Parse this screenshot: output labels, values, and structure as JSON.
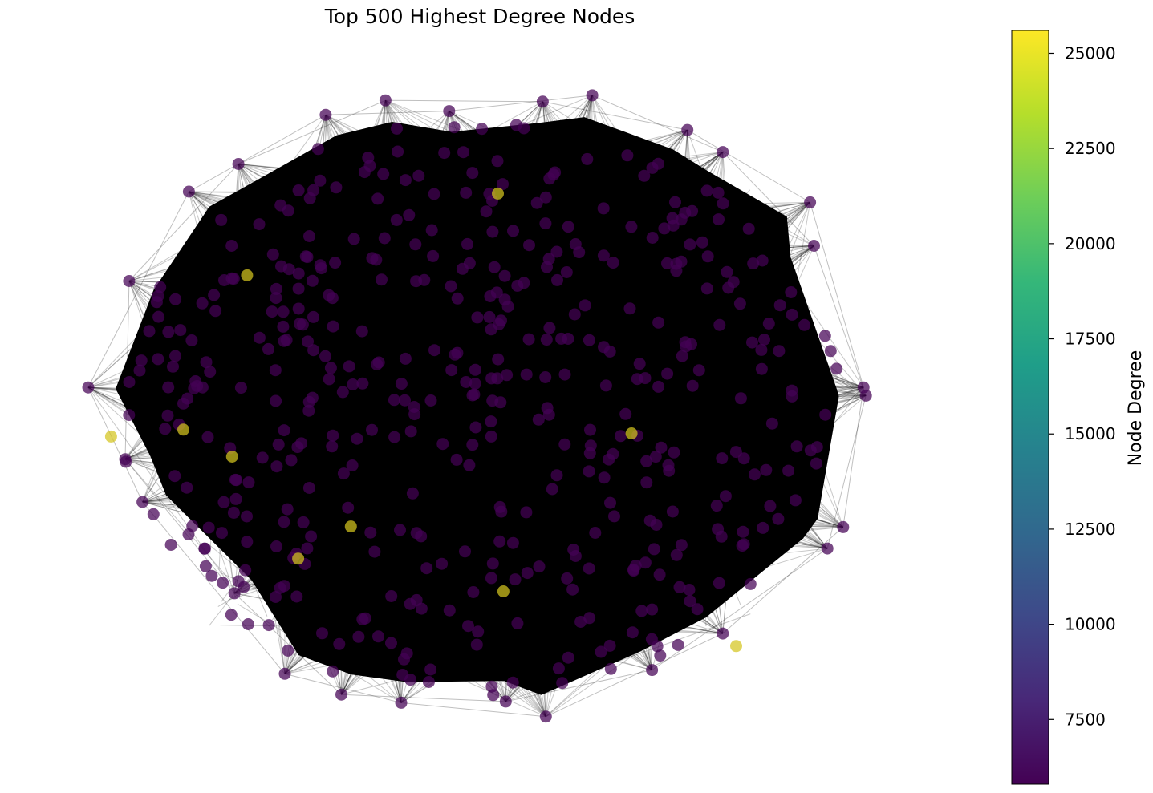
{
  "chart_data": {
    "type": "scatter",
    "title": "Top 500 Highest Degree Nodes",
    "node_count": 500,
    "colorbar": {
      "label": "Node Degree",
      "colormap": "viridis",
      "min": 5800,
      "max": 25600,
      "ticks": [
        7500,
        10000,
        12500,
        15000,
        17500,
        20000,
        22500,
        25000
      ]
    },
    "node_colors": {
      "low": "#440154",
      "high": "#d4c51f"
    },
    "edge_color": "#000000",
    "axes_visible": false,
    "high_degree_nodes": [
      {
        "x": 0.826,
        "y": 0.88,
        "degree": 25000
      },
      {
        "x": 0.53,
        "y": 0.793,
        "degree": 25000
      },
      {
        "x": 0.269,
        "y": 0.741,
        "degree": 25000
      },
      {
        "x": 0.336,
        "y": 0.69,
        "degree": 25000
      },
      {
        "x": 0.185,
        "y": 0.579,
        "degree": 25000
      },
      {
        "x": 0.031,
        "y": 0.547,
        "degree": 25000
      },
      {
        "x": 0.123,
        "y": 0.536,
        "degree": 25000
      },
      {
        "x": 0.693,
        "y": 0.542,
        "degree": 25000
      },
      {
        "x": 0.204,
        "y": 0.291,
        "degree": 25000
      },
      {
        "x": 0.523,
        "y": 0.161,
        "degree": 25000
      }
    ]
  }
}
